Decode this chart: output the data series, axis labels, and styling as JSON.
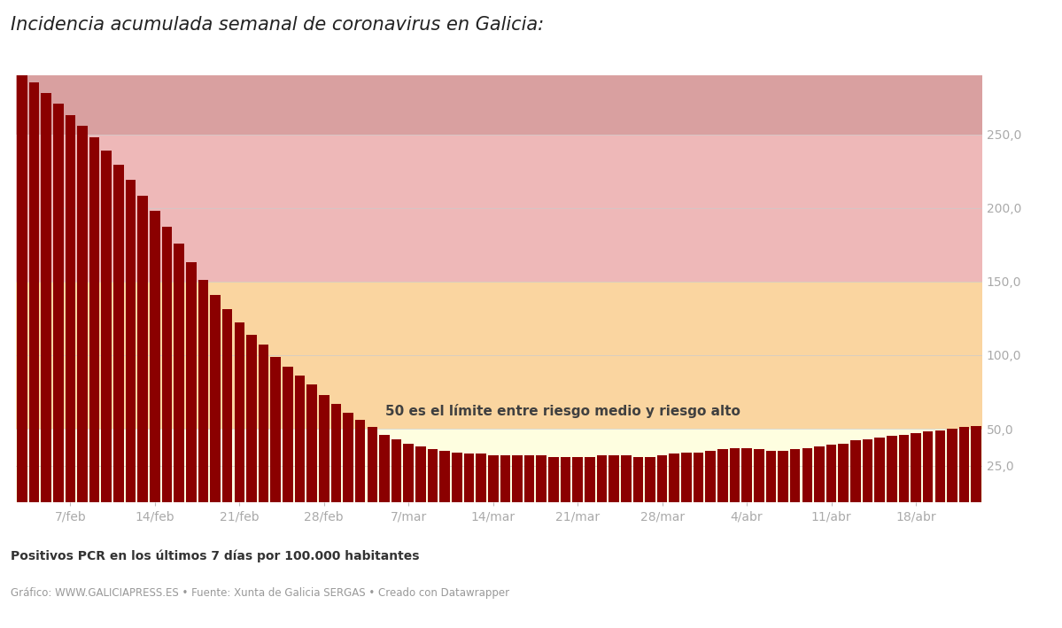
{
  "title": "Incidencia acumulada semanal de coronavirus en Galicia:",
  "ylabel_bold": "Positivos PCR en los últimos 7 días por 100.000 habitantes",
  "footer": "Gráfico: WWW.GALICIAPRESS.ES • Fuente: Xunta de Galicia SERGAS • Creado con Datawrapper",
  "annotation": "50 es el límite entre riesgo medio y riesgo alto",
  "bar_color": "#8B0000",
  "zone_yellow": "#FEFEE0",
  "zone_peach": "#FADADB",
  "zone_pink": "#EFB8B8",
  "zone_dark_pink": "#D9A0A0",
  "ylim_max": 285,
  "yticks": [
    25,
    50,
    100,
    150,
    200,
    250
  ],
  "xlabels": [
    "7/feb",
    "14/feb",
    "21/feb",
    "28/feb",
    "7/mar",
    "14/mar",
    "21/mar",
    "28/mar",
    "4/abr",
    "11/abr",
    "18/abr"
  ],
  "bar_values": [
    290,
    285,
    278,
    271,
    263,
    256,
    248,
    239,
    229,
    219,
    208,
    198,
    187,
    176,
    163,
    151,
    141,
    131,
    122,
    114,
    107,
    99,
    92,
    86,
    80,
    73,
    67,
    61,
    56,
    51,
    46,
    43,
    40,
    38,
    36,
    35,
    34,
    33,
    33,
    32,
    32,
    32,
    32,
    32,
    31,
    31,
    31,
    31,
    32,
    32,
    32,
    31,
    31,
    32,
    33,
    34,
    34,
    35,
    36,
    37,
    37,
    36,
    35,
    35,
    36,
    37,
    38,
    39,
    40,
    42,
    43,
    44,
    45,
    46,
    47,
    48,
    49,
    50,
    51,
    52
  ],
  "label_indices": [
    4,
    11,
    18,
    25,
    32,
    39,
    46,
    53,
    60,
    67,
    74
  ],
  "background_color": "#ffffff"
}
